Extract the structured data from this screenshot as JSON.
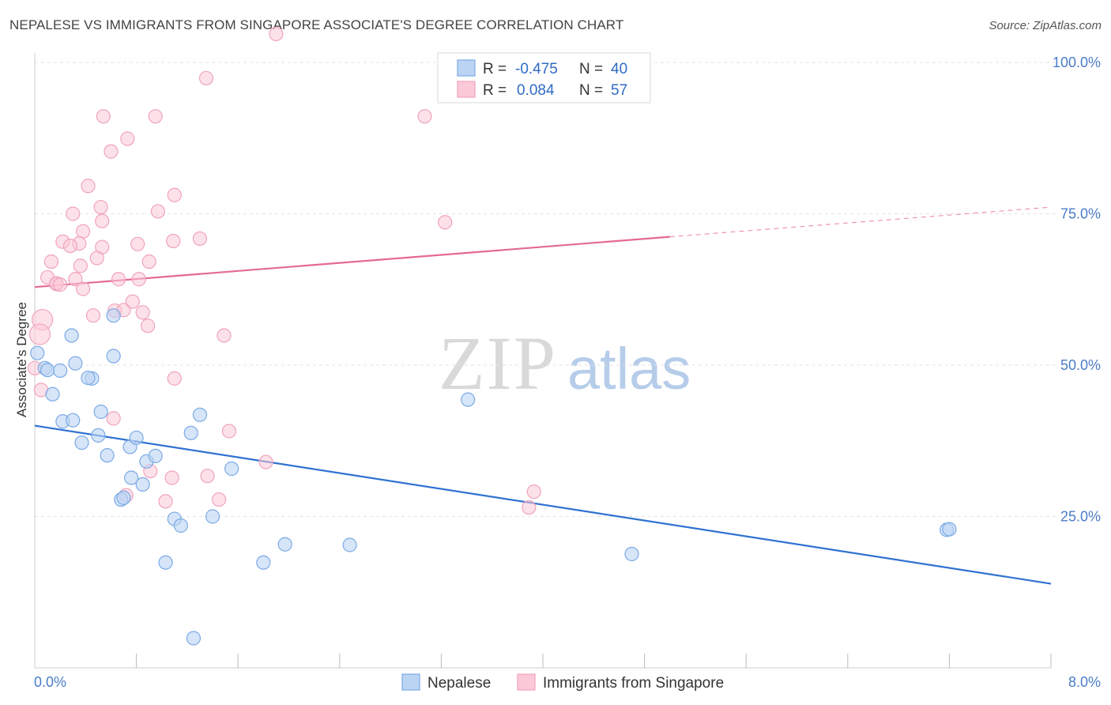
{
  "title": "NEPALESE VS IMMIGRANTS FROM SINGAPORE ASSOCIATE'S DEGREE CORRELATION CHART",
  "source": "Source: ZipAtlas.com",
  "colors": {
    "blue": "#7aaae6",
    "blue_line": "#2f72d1",
    "pink": "#f0a3bd",
    "pink_line": "#e46a93"
  },
  "legend": {
    "r_label": "R =",
    "n_label": "N =",
    "series1": {
      "r": "-0.475",
      "n": "40"
    },
    "series2": {
      "r": "0.084",
      "n": "57"
    }
  },
  "chart_data": {
    "type": "scatter",
    "xlabel": "",
    "ylabel": "Associate's Degree",
    "xlim": [
      0,
      8
    ],
    "ylim": [
      0,
      100
    ],
    "x_tick_labels": [
      "0.0%",
      "8.0%"
    ],
    "y_tick_labels": [
      "25.0%",
      "50.0%",
      "75.0%",
      "100.0%"
    ],
    "y_ticks": [
      25,
      50,
      75,
      100
    ],
    "legend_position": "top-center",
    "series": [
      {
        "name": "Nepalese",
        "trend": {
          "x": [
            0,
            8
          ],
          "y": [
            40.0,
            13.9
          ]
        },
        "points": [
          [
            0.02,
            52.0
          ],
          [
            0.08,
            49.5
          ],
          [
            0.14,
            45.2
          ],
          [
            0.22,
            40.7
          ],
          [
            0.3,
            40.9
          ],
          [
            0.1,
            49.2
          ],
          [
            0.2,
            49.1
          ],
          [
            0.29,
            54.9
          ],
          [
            0.32,
            50.3
          ],
          [
            0.45,
            47.8
          ],
          [
            0.42,
            47.9
          ],
          [
            0.62,
            58.2
          ],
          [
            0.62,
            51.5
          ],
          [
            0.37,
            37.2
          ],
          [
            0.5,
            38.4
          ],
          [
            0.52,
            42.3
          ],
          [
            0.57,
            35.1
          ],
          [
            0.75,
            36.5
          ],
          [
            0.8,
            38.0
          ],
          [
            0.88,
            34.1
          ],
          [
            0.95,
            35.0
          ],
          [
            0.76,
            31.4
          ],
          [
            0.85,
            30.3
          ],
          [
            0.68,
            27.8
          ],
          [
            0.7,
            28.1
          ],
          [
            1.23,
            38.8
          ],
          [
            1.3,
            41.8
          ],
          [
            1.55,
            32.9
          ],
          [
            1.1,
            24.6
          ],
          [
            1.15,
            23.5
          ],
          [
            1.4,
            25.0
          ],
          [
            1.03,
            17.4
          ],
          [
            1.8,
            17.4
          ],
          [
            1.97,
            20.4
          ],
          [
            2.48,
            20.3
          ],
          [
            3.41,
            44.3
          ],
          [
            4.7,
            18.8
          ],
          [
            7.18,
            22.8
          ],
          [
            7.2,
            22.9
          ],
          [
            1.25,
            4.9
          ]
        ]
      },
      {
        "name": "Immigrants from Singapore",
        "trend": {
          "x": [
            0,
            5
          ],
          "y": [
            62.9,
            71.2
          ]
        },
        "trend_dash": {
          "x": [
            5,
            8
          ],
          "y": [
            71.2,
            76.1
          ]
        },
        "points": [
          [
            1.9,
            104.7
          ],
          [
            1.35,
            97.4
          ],
          [
            0.54,
            91.1
          ],
          [
            0.95,
            91.1
          ],
          [
            3.07,
            91.1
          ],
          [
            0.73,
            87.4
          ],
          [
            0.6,
            85.3
          ],
          [
            0.42,
            79.6
          ],
          [
            1.1,
            78.1
          ],
          [
            0.3,
            75.0
          ],
          [
            0.52,
            76.1
          ],
          [
            0.97,
            75.4
          ],
          [
            0.53,
            73.8
          ],
          [
            3.23,
            73.6
          ],
          [
            0.38,
            72.1
          ],
          [
            0.22,
            70.4
          ],
          [
            0.35,
            70.1
          ],
          [
            0.28,
            69.7
          ],
          [
            0.53,
            69.5
          ],
          [
            0.81,
            70.0
          ],
          [
            1.09,
            70.5
          ],
          [
            1.3,
            70.9
          ],
          [
            0.49,
            67.7
          ],
          [
            0.13,
            67.1
          ],
          [
            0.36,
            66.4
          ],
          [
            0.9,
            67.1
          ],
          [
            0.1,
            64.5
          ],
          [
            0.32,
            64.2
          ],
          [
            0.66,
            64.2
          ],
          [
            0.82,
            64.2
          ],
          [
            0.17,
            63.4
          ],
          [
            0.38,
            62.6
          ],
          [
            0.17,
            63.5
          ],
          [
            0.2,
            63.3
          ],
          [
            0.46,
            58.2
          ],
          [
            0.63,
            59.0
          ],
          [
            0.7,
            59.1
          ],
          [
            0.85,
            58.7
          ],
          [
            0.89,
            56.5
          ],
          [
            0.06,
            57.5
          ],
          [
            0.04,
            55.1
          ],
          [
            1.49,
            54.9
          ],
          [
            0.0,
            49.5
          ],
          [
            1.1,
            47.8
          ],
          [
            0.62,
            41.2
          ],
          [
            1.53,
            39.1
          ],
          [
            1.82,
            34.0
          ],
          [
            0.91,
            32.5
          ],
          [
            1.08,
            31.4
          ],
          [
            1.36,
            31.7
          ],
          [
            0.72,
            28.5
          ],
          [
            1.03,
            27.5
          ],
          [
            1.45,
            27.8
          ],
          [
            3.93,
            29.1
          ],
          [
            3.89,
            26.5
          ],
          [
            0.77,
            60.5
          ],
          [
            0.05,
            45.9
          ]
        ]
      }
    ]
  },
  "bottom_legend": {
    "items": [
      "Nepalese",
      "Immigrants from Singapore"
    ]
  },
  "watermark": {
    "zip": "ZIP",
    "atlas": "atlas"
  }
}
